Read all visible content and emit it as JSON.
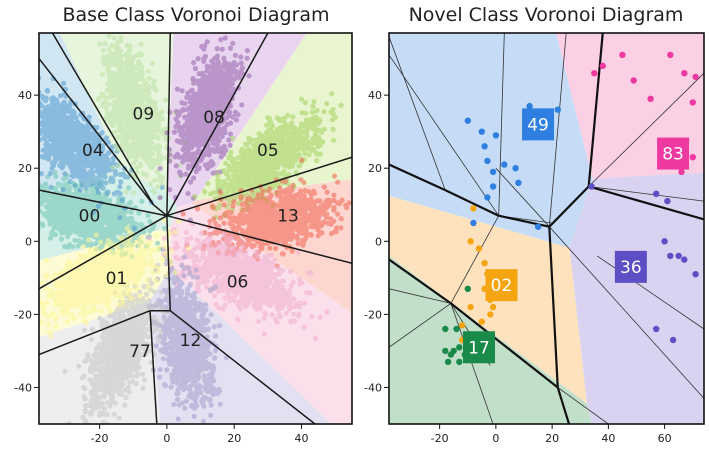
{
  "chart_data": [
    {
      "type": "scatter",
      "title": "Base Class Voronoi Diagram",
      "xlim": [
        -38,
        55
      ],
      "ylim": [
        -50,
        57
      ],
      "xticks": [
        -20,
        0,
        20,
        40
      ],
      "yticks": [
        -40,
        -20,
        0,
        20,
        40
      ],
      "regions": [
        {
          "label": "00",
          "center": [
            -24,
            7
          ],
          "color": "#76c7b7",
          "fill": "#d4f0e8",
          "label_pos": [
            -23,
            7
          ]
        },
        {
          "label": "04",
          "center": [
            -28,
            27
          ],
          "color": "#5b9fd1",
          "fill": "#d0e6f3",
          "label_pos": [
            -22,
            25
          ]
        },
        {
          "label": "09",
          "center": [
            -10,
            36
          ],
          "color": "#bfe3a8",
          "fill": "#e6f5dc",
          "label_pos": [
            -7,
            35
          ]
        },
        {
          "label": "08",
          "center": [
            12,
            35
          ],
          "color": "#9b6bb2",
          "fill": "#e9d5ef",
          "label_pos": [
            14,
            34
          ]
        },
        {
          "label": "05",
          "center": [
            30,
            22
          ],
          "color": "#a8d465",
          "fill": "#e8f5cf",
          "label_pos": [
            30,
            25
          ]
        },
        {
          "label": "13",
          "center": [
            32,
            6
          ],
          "color": "#f26d5b",
          "fill": "#fcd6cf",
          "label_pos": [
            36,
            7
          ]
        },
        {
          "label": "06",
          "center": [
            22,
            -10
          ],
          "color": "#f2b2d0",
          "fill": "#fbe0ec",
          "label_pos": [
            21,
            -11
          ]
        },
        {
          "label": "12",
          "center": [
            6,
            -28
          ],
          "color": "#a7a3cf",
          "fill": "#e3e1f1",
          "label_pos": [
            7,
            -27
          ]
        },
        {
          "label": "77",
          "center": [
            -14,
            -30
          ],
          "color": "#c8c8c8",
          "fill": "#eeeeee",
          "label_pos": [
            -8,
            -30
          ]
        },
        {
          "label": "01",
          "center": [
            -20,
            -10
          ],
          "color": "#fdf79a",
          "fill": "#fdfbd6",
          "label_pos": [
            -15,
            -10
          ]
        }
      ],
      "boundaries": [
        [
          [
            0,
            7
          ],
          [
            -38,
            14
          ]
        ],
        [
          [
            0,
            7
          ],
          [
            -4,
            10
          ]
        ],
        [
          [
            -4,
            10
          ],
          [
            -38,
            50
          ]
        ],
        [
          [
            -4,
            10
          ],
          [
            -34,
            57
          ]
        ],
        [
          [
            0,
            7
          ],
          [
            1,
            57
          ]
        ],
        [
          [
            0,
            7
          ],
          [
            30,
            57
          ]
        ],
        [
          [
            0,
            7
          ],
          [
            55,
            23
          ]
        ],
        [
          [
            0,
            7
          ],
          [
            55,
            -6
          ]
        ],
        [
          [
            0,
            7
          ],
          [
            -38,
            -13
          ]
        ],
        [
          [
            0,
            7
          ],
          [
            1,
            -19
          ]
        ],
        [
          [
            1,
            -19
          ],
          [
            -5,
            -19
          ]
        ],
        [
          [
            -5,
            -19
          ],
          [
            -38,
            -31
          ]
        ],
        [
          [
            -5,
            -19
          ],
          [
            -3,
            -50
          ]
        ],
        [
          [
            1,
            -19
          ],
          [
            44,
            -50
          ]
        ]
      ]
    },
    {
      "type": "scatter",
      "title": "Novel Class Voronoi Diagram",
      "xlim": [
        -38,
        74
      ],
      "ylim": [
        -50,
        57
      ],
      "xticks": [
        -20,
        0,
        20,
        40,
        60
      ],
      "yticks": [
        -40,
        -20,
        0,
        20,
        40
      ],
      "classes": [
        {
          "label": "49",
          "color": "#2f7fe0",
          "fill": "#c6dcf6",
          "label_pos": [
            15,
            32
          ],
          "points": [
            [
              -10,
              33
            ],
            [
              -5,
              30
            ],
            [
              -4,
              26
            ],
            [
              -3,
              22
            ],
            [
              -1,
              19
            ],
            [
              -1,
              15
            ],
            [
              0,
              29
            ],
            [
              3,
              21
            ],
            [
              7,
              20
            ],
            [
              8,
              16
            ],
            [
              12,
              37
            ],
            [
              22,
              36
            ],
            [
              -3,
              12
            ],
            [
              15,
              4
            ],
            [
              -8,
              5
            ]
          ]
        },
        {
          "label": "83",
          "color": "#ee3aa0",
          "fill": "#fbcfe4",
          "label_pos": [
            63,
            24
          ],
          "points": [
            [
              35,
              46
            ],
            [
              38,
              48
            ],
            [
              45,
              51
            ],
            [
              49,
              44
            ],
            [
              55,
              39
            ],
            [
              62,
              51
            ],
            [
              67,
              46
            ],
            [
              71,
              45
            ],
            [
              70,
              38
            ],
            [
              66,
              27
            ],
            [
              70,
              23
            ],
            [
              66,
              19
            ]
          ]
        },
        {
          "label": "36",
          "color": "#5e4ec4",
          "fill": "#d9d3f1",
          "label_pos": [
            48,
            -7
          ],
          "points": [
            [
              34,
              15
            ],
            [
              57,
              13
            ],
            [
              61,
              11
            ],
            [
              60,
              0
            ],
            [
              62,
              -4
            ],
            [
              65,
              -4
            ],
            [
              67,
              -5
            ],
            [
              71,
              -9
            ],
            [
              57,
              -24
            ],
            [
              63,
              -27
            ]
          ]
        },
        {
          "label": "02",
          "color": "#f5a512",
          "fill": "#fde2bd",
          "label_pos": [
            2,
            -12
          ],
          "points": [
            [
              -8,
              9
            ],
            [
              -9,
              0
            ],
            [
              -6,
              -2
            ],
            [
              -4,
              -6
            ],
            [
              -3,
              -9
            ],
            [
              -4,
              -13
            ],
            [
              -2,
              -16
            ],
            [
              -2,
              -20
            ],
            [
              -5,
              -22
            ],
            [
              -9,
              -18
            ],
            [
              -12,
              -23
            ],
            [
              -12,
              -27
            ],
            [
              -1,
              -18
            ],
            [
              0,
              -15
            ]
          ]
        },
        {
          "label": "17",
          "color": "#1a8a4a",
          "fill": "#c2dfca",
          "label_pos": [
            -6,
            -29
          ],
          "points": [
            [
              -18,
              -24
            ],
            [
              -14,
              -24
            ],
            [
              -18,
              -30
            ],
            [
              -16,
              -31
            ],
            [
              -13,
              -29
            ],
            [
              -13,
              -33
            ],
            [
              -17,
              -33
            ],
            [
              -15,
              -30
            ],
            [
              -11,
              -31
            ],
            [
              -9,
              -26
            ],
            [
              -10,
              -13
            ]
          ]
        }
      ],
      "thick_boundaries": [
        [
          [
            -38,
            21
          ],
          [
            -18,
            14
          ]
        ],
        [
          [
            -18,
            14
          ],
          [
            1,
            7
          ]
        ],
        [
          [
            1,
            7
          ],
          [
            19,
            4
          ]
        ],
        [
          [
            19,
            4
          ],
          [
            33,
            15
          ]
        ],
        [
          [
            33,
            15
          ],
          [
            38,
            57
          ]
        ],
        [
          [
            33,
            15
          ],
          [
            74,
            6
          ]
        ],
        [
          [
            19,
            4
          ],
          [
            22,
            -40
          ]
        ],
        [
          [
            22,
            -40
          ],
          [
            26,
            -50
          ]
        ],
        [
          [
            -38,
            -5
          ],
          [
            -16,
            -17
          ]
        ],
        [
          [
            -16,
            -17
          ],
          [
            22,
            -40
          ]
        ]
      ],
      "thin_boundaries": [
        [
          [
            19,
            4
          ],
          [
            25,
            57
          ]
        ],
        [
          [
            1,
            7
          ],
          [
            3,
            57
          ]
        ],
        [
          [
            -18,
            14
          ],
          [
            -38,
            56
          ]
        ],
        [
          [
            1,
            7
          ],
          [
            -38,
            51
          ]
        ],
        [
          [
            19,
            4
          ],
          [
            0,
            20
          ]
        ],
        [
          [
            1,
            7
          ],
          [
            20,
            5
          ]
        ],
        [
          [
            -16,
            -17
          ],
          [
            -38,
            -13
          ]
        ],
        [
          [
            -16,
            -17
          ],
          [
            1,
            7
          ]
        ],
        [
          [
            -38,
            -29
          ],
          [
            -16,
            -17
          ]
        ],
        [
          [
            -16,
            -17
          ],
          [
            -1,
            -50
          ]
        ],
        [
          [
            -16,
            -17
          ],
          [
            -2,
            -34
          ]
        ],
        [
          [
            74,
            11
          ],
          [
            33,
            15
          ]
        ],
        [
          [
            36,
            -4
          ],
          [
            74,
            -24
          ]
        ],
        [
          [
            19,
            4
          ],
          [
            74,
            -43
          ]
        ],
        [
          [
            22,
            -40
          ],
          [
            40,
            -50
          ]
        ],
        [
          [
            74,
            46
          ],
          [
            33,
            15
          ]
        ]
      ]
    }
  ]
}
